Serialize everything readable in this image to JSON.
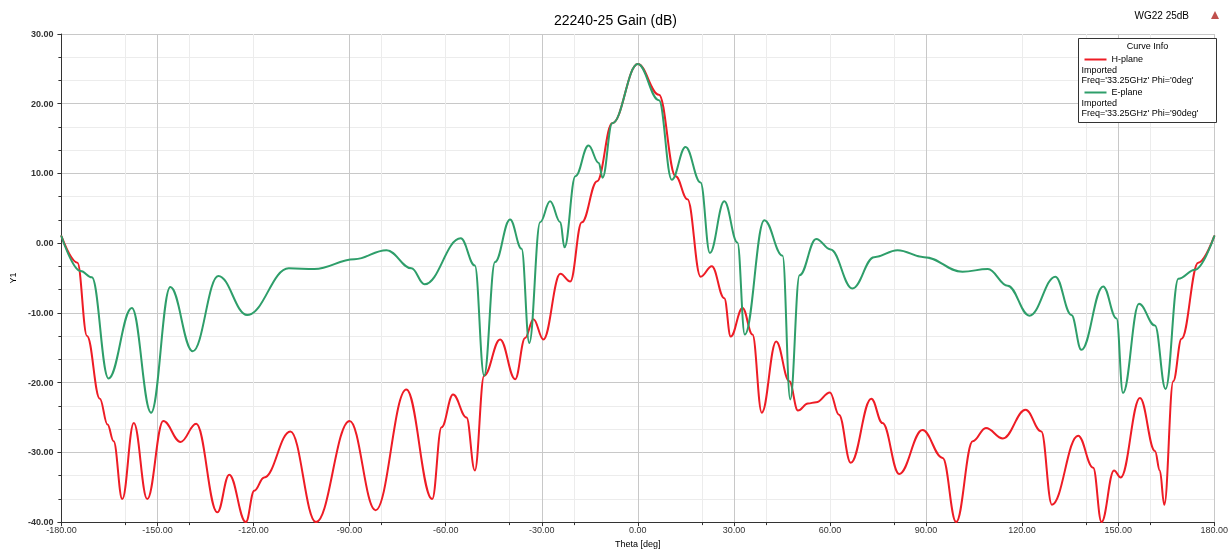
{
  "chart_data": {
    "type": "line",
    "title": "22240-25 Gain (dB)",
    "xlabel": "Theta [deg]",
    "ylabel": "Y1",
    "legend_title": "Curve Info",
    "legend": "top right",
    "grid": true,
    "marker": "none",
    "line_style": "solid",
    "annotations": [
      "WG22 25dB",
      "Imported\nFreq='33.25GHz' Phi='0deg'",
      "Imported\nFreq='33.25GHz' Phi='90deg'"
    ],
    "xlim": [
      -180,
      180
    ],
    "ylim": [
      -40,
      30
    ],
    "xticks": [
      {
        "value": -180,
        "label": "-180.00"
      },
      {
        "value": -150,
        "label": "-150.00"
      },
      {
        "value": -120,
        "label": "-120.00"
      },
      {
        "value": -90,
        "label": "-90.00"
      },
      {
        "value": -60,
        "label": "-60.00"
      },
      {
        "value": -30,
        "label": "-30.00"
      },
      {
        "value": 0,
        "label": "0.00"
      },
      {
        "value": 30,
        "label": "30.00"
      },
      {
        "value": 60,
        "label": "60.00"
      },
      {
        "value": 90,
        "label": "90.00"
      },
      {
        "value": 120,
        "label": "120.00"
      },
      {
        "value": 150,
        "label": "150.00"
      },
      {
        "value": 180,
        "label": "180.00"
      }
    ],
    "yticks": [
      {
        "value": -40,
        "label": "-40.00"
      },
      {
        "value": -30,
        "label": "-30.00"
      },
      {
        "value": -20,
        "label": "-20.00"
      },
      {
        "value": -10,
        "label": "-10.00"
      },
      {
        "value": 0,
        "label": "0.00"
      },
      {
        "value": 10,
        "label": "10.00"
      },
      {
        "value": 20,
        "label": "20.00"
      },
      {
        "value": 30,
        "label": "30.00"
      }
    ],
    "series": [
      {
        "name": "H-plane",
        "color": "#ee1c25",
        "x": [
          -180,
          -175,
          -172,
          -168,
          -165.6,
          -163.7,
          -161,
          -157.4,
          -153.2,
          -148.2,
          -142.8,
          -137.9,
          -131.3,
          -127.6,
          -122.4,
          -119.8,
          -116.7,
          -108.5,
          -100.5,
          -90,
          -81.9,
          -72.3,
          -64.2,
          -61.3,
          -57.7,
          -53.5,
          -50.9,
          -48,
          -43,
          -38.3,
          -35.2,
          -32.6,
          -29.5,
          -24.2,
          -21.1,
          -17.5,
          -12.7,
          -8,
          0,
          6.6,
          11.8,
          15.5,
          19.6,
          23.1,
          27,
          29,
          32.7,
          35.8,
          38.7,
          43.2,
          47.3,
          50,
          53.1,
          55.7,
          60,
          62.8,
          66.5,
          72.9,
          76.4,
          81.6,
          88.9,
          95.2,
          99.4,
          104.6,
          108.7,
          114,
          121.1,
          126,
          129.3,
          137.5,
          142.2,
          144.8,
          148.7,
          150.8,
          156.8,
          161.5,
          163,
          164.4,
          167.2,
          169.8,
          175,
          180
        ],
        "values": [
          1,
          -2.8,
          -13.3,
          -22.3,
          -26,
          -28.4,
          -36.7,
          -25.8,
          -36.7,
          -25.5,
          -28.5,
          -25.9,
          -38.6,
          -33.2,
          -40,
          -35.5,
          -33.6,
          -27,
          -40,
          -25.5,
          -38.3,
          -21,
          -36.7,
          -26.4,
          -21.7,
          -25,
          -32.6,
          -19,
          -13.8,
          -19.5,
          -13.6,
          -10.9,
          -13.8,
          -4.4,
          -5.5,
          3,
          8.9,
          17.2,
          25.7,
          21.3,
          9.6,
          6.3,
          -4.8,
          -3.3,
          -7.9,
          -13.4,
          -9.3,
          -13.1,
          -24.3,
          -14.1,
          -19.8,
          -24,
          -23,
          -22.8,
          -21.4,
          -24.6,
          -31.5,
          -22.3,
          -25.8,
          -33.1,
          -26.8,
          -30.8,
          -40,
          -28.4,
          -26.5,
          -28,
          -23.9,
          -27,
          -37.5,
          -27.6,
          -32.2,
          -40,
          -32.6,
          -33.6,
          -22.2,
          -29.8,
          -32.6,
          -37.5,
          -19.8,
          -13.7,
          -2.8,
          1
        ]
      },
      {
        "name": "E-plane",
        "color": "#2e9e6a",
        "x": [
          -180,
          -174,
          -170.5,
          -165.3,
          -158,
          -152,
          -146,
          -139,
          -131,
          -122,
          -109,
          -101,
          -88.5,
          -78.5,
          -70.7,
          -66.6,
          -55.3,
          -50.9,
          -48,
          -44.6,
          -39.9,
          -36.3,
          -33.9,
          -30.5,
          -27.4,
          -24.2,
          -22.9,
          -19.5,
          -15.4,
          -12.2,
          -11,
          -8,
          0,
          6.6,
          10.6,
          14.9,
          19.6,
          22.5,
          27,
          31.1,
          33.4,
          39.5,
          45.2,
          47.6,
          50.5,
          55.7,
          60.2,
          67,
          73.8,
          81.1,
          89.4,
          101.4,
          109.3,
          115.5,
          122.3,
          130.4,
          135.4,
          138.5,
          145.3,
          149.5,
          151.5,
          156.5,
          161.5,
          164.8,
          168.8,
          174,
          180
        ],
        "values": [
          1,
          -4,
          -4.9,
          -19.4,
          -9.3,
          -24.3,
          -6.3,
          -15.5,
          -4.7,
          -10.3,
          -3.6,
          -3.7,
          -2.3,
          -1,
          -3.6,
          -5.9,
          0.7,
          -3.2,
          -19,
          -2.7,
          3.4,
          -0.8,
          -14.3,
          3,
          6,
          3,
          -0.6,
          9.6,
          14,
          11.5,
          9.4,
          17.2,
          25.7,
          20.5,
          9.1,
          13.8,
          8.7,
          -1.4,
          6,
          0.1,
          -13.1,
          3.3,
          -1.8,
          -22.4,
          -4.6,
          0.6,
          -0.9,
          -6.5,
          -2,
          -1,
          -2,
          -4.1,
          -3.7,
          -6.1,
          -10.4,
          -4.8,
          -10.3,
          -15.3,
          -6.2,
          -10.8,
          -21.5,
          -8.7,
          -11.8,
          -20.9,
          -5.1,
          -3.8,
          1
        ]
      }
    ]
  }
}
